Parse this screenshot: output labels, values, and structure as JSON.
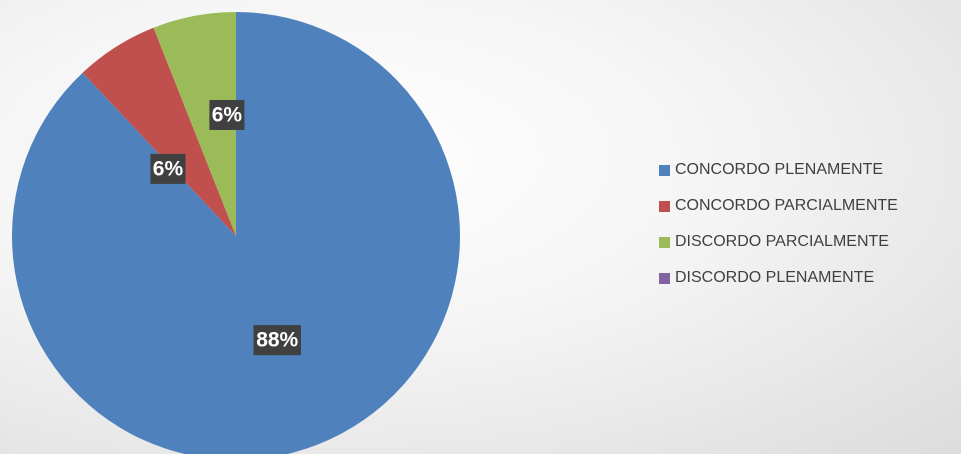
{
  "chart_data": {
    "type": "pie",
    "categories": [
      "CONCORDO PLENAMENTE",
      "CONCORDO PARCIALMENTE",
      "DISCORDO PARCIALMENTE",
      "DISCORDO PLENAMENTE"
    ],
    "values": [
      88,
      6,
      6,
      0
    ],
    "data_labels": [
      "88%",
      "6%",
      "6%",
      ""
    ],
    "colors": [
      "#4f81bd",
      "#c0504d",
      "#9bbb59",
      "#8064a2"
    ],
    "legend_position": "right",
    "start_angle": "top, clockwise"
  }
}
